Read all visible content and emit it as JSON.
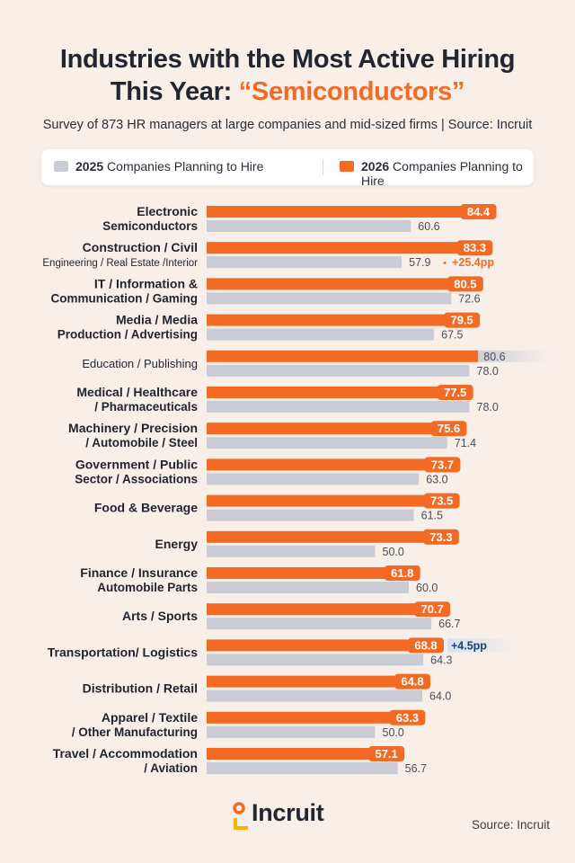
{
  "title": {
    "line1": "Industries with the Most Active Hiring",
    "line2_prefix": "This Year: ",
    "line2_highlight": "“Semiconductors”"
  },
  "subtitle": "Survey of 873 HR managers at large companies and mid-sized firms | Source: Incruit",
  "legend": {
    "item2025_year": "2025",
    "item2025_label": " Companies Planning to Hire",
    "item2026_year": "2026",
    "item2026_label": " Companies Planning to Hire"
  },
  "colors": {
    "orange": "#f36a24",
    "gray": "#c9ccd4",
    "accent_text": "#f36a24",
    "blue_text": "#1f3f7a"
  },
  "chart_data": {
    "type": "bar",
    "orientation": "horizontal",
    "xlim": [
      0,
      100
    ],
    "series_names": [
      "2026 Companies Planning to Hire",
      "2025 Companies Planning to Hire"
    ],
    "categories": [
      {
        "line1": "Electronic",
        "line2": "Semiconductors",
        "v2026": 84.4,
        "v2025": 60.6
      },
      {
        "line1": "Construction / Civil",
        "line2": "Engineering / Real Estate /Interior",
        "v2026": 83.3,
        "v2025": 57.9,
        "note": "+25.4pp",
        "note_style": "orange"
      },
      {
        "line1": "IT / Information &",
        "line2": "Communication / Gaming",
        "v2026": 80.5,
        "v2025": 72.6
      },
      {
        "line1": "Media / Media",
        "line2": "Production / Advertising",
        "v2026": 79.5,
        "v2025": 67.5
      },
      {
        "line1": "Education / Publishing",
        "line2": "",
        "v2026": 80.6,
        "v2025": 78.0,
        "label_style": "plain"
      },
      {
        "line1": "Medical / Healthcare",
        "line2": "/ Pharmaceuticals",
        "v2026": 77.5,
        "v2025": 78.0
      },
      {
        "line1": "Machinery / Precision",
        "line2": "/ Automobile / Steel",
        "v2026": 75.6,
        "v2025": 71.4
      },
      {
        "line1": "Government / Public",
        "line2": "Sector / Associations",
        "v2026": 73.7,
        "v2025": 63.0
      },
      {
        "line1": "Food & Beverage",
        "line2": "",
        "v2026": 73.5,
        "v2025": 61.5
      },
      {
        "line1": "Energy",
        "line2": "",
        "v2026": 73.3,
        "v2025": 50.0
      },
      {
        "line1": "Finance / Insurance",
        "line2": "Automobile Parts",
        "v2026": 61.8,
        "v2025": 60.0
      },
      {
        "line1": "Arts / Sports",
        "line2": "",
        "v2026": 70.7,
        "v2025": 66.7
      },
      {
        "line1": "Transportation/ Logistics",
        "line2": "",
        "v2026": 68.8,
        "v2025": 64.3,
        "note": "+4.5pp",
        "note_style": "blue"
      },
      {
        "line1": "Distribution / Retail",
        "line2": "",
        "v2026": 64.8,
        "v2025": 64.0
      },
      {
        "line1": "Apparel / Textile",
        "line2": "/ Other Manufacturing",
        "v2026": 63.3,
        "v2025": 50.0
      },
      {
        "line1": "Travel / Accommodation",
        "line2": "/ Aviation",
        "v2026": 57.1,
        "v2025": 56.7
      }
    ]
  },
  "footer": {
    "logo_text": "Incruit",
    "source": "Source: Incruit"
  }
}
